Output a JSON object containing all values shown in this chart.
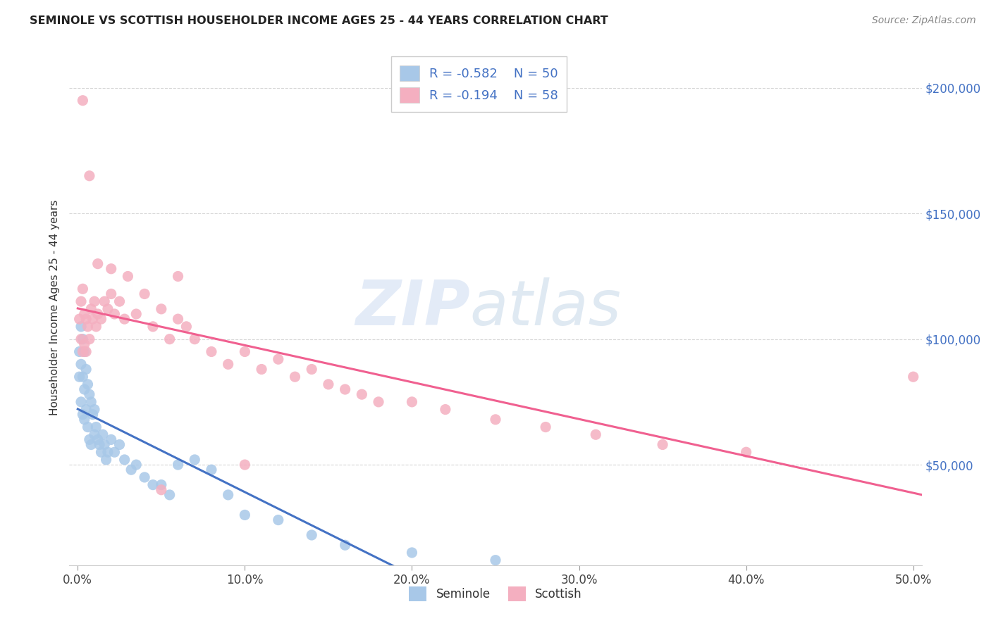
{
  "title": "SEMINOLE VS SCOTTISH HOUSEHOLDER INCOME AGES 25 - 44 YEARS CORRELATION CHART",
  "source": "Source: ZipAtlas.com",
  "ylabel": "Householder Income Ages 25 - 44 years",
  "xlabel_ticks": [
    "0.0%",
    "10.0%",
    "20.0%",
    "30.0%",
    "40.0%",
    "50.0%"
  ],
  "ytick_labels": [
    "$50,000",
    "$100,000",
    "$150,000",
    "$200,000"
  ],
  "ytick_values": [
    50000,
    100000,
    150000,
    200000
  ],
  "xlim": [
    -0.005,
    0.505
  ],
  "ylim": [
    10000,
    215000
  ],
  "background_color": "#ffffff",
  "grid_color": "#cccccc",
  "seminole_color": "#a8c8e8",
  "scottish_color": "#f4afc0",
  "seminole_line_color": "#4472c4",
  "scottish_line_color": "#f06090",
  "seminole_R": -0.582,
  "seminole_N": 50,
  "scottish_R": -0.194,
  "scottish_N": 58,
  "watermark_zip": "ZIP",
  "watermark_atlas": "atlas",
  "seminole_x": [
    0.001,
    0.001,
    0.002,
    0.002,
    0.002,
    0.003,
    0.003,
    0.003,
    0.004,
    0.004,
    0.004,
    0.005,
    0.005,
    0.006,
    0.006,
    0.007,
    0.007,
    0.008,
    0.008,
    0.009,
    0.01,
    0.01,
    0.011,
    0.012,
    0.013,
    0.014,
    0.015,
    0.016,
    0.017,
    0.018,
    0.02,
    0.022,
    0.025,
    0.028,
    0.032,
    0.035,
    0.04,
    0.045,
    0.05,
    0.055,
    0.06,
    0.07,
    0.08,
    0.09,
    0.1,
    0.12,
    0.14,
    0.16,
    0.2,
    0.25
  ],
  "seminole_y": [
    95000,
    85000,
    105000,
    90000,
    75000,
    100000,
    85000,
    70000,
    95000,
    80000,
    68000,
    88000,
    72000,
    82000,
    65000,
    78000,
    60000,
    75000,
    58000,
    70000,
    72000,
    62000,
    65000,
    60000,
    58000,
    55000,
    62000,
    58000,
    52000,
    55000,
    60000,
    55000,
    58000,
    52000,
    48000,
    50000,
    45000,
    42000,
    42000,
    38000,
    50000,
    52000,
    48000,
    38000,
    30000,
    28000,
    22000,
    18000,
    15000,
    12000
  ],
  "scottish_x": [
    0.001,
    0.002,
    0.002,
    0.003,
    0.003,
    0.004,
    0.004,
    0.005,
    0.005,
    0.006,
    0.007,
    0.008,
    0.009,
    0.01,
    0.011,
    0.012,
    0.014,
    0.016,
    0.018,
    0.02,
    0.022,
    0.025,
    0.028,
    0.03,
    0.035,
    0.04,
    0.045,
    0.05,
    0.055,
    0.06,
    0.065,
    0.07,
    0.08,
    0.09,
    0.1,
    0.11,
    0.12,
    0.13,
    0.14,
    0.15,
    0.16,
    0.17,
    0.18,
    0.2,
    0.22,
    0.25,
    0.28,
    0.31,
    0.35,
    0.4,
    0.003,
    0.007,
    0.012,
    0.02,
    0.06,
    0.1,
    0.05,
    0.5
  ],
  "scottish_y": [
    108000,
    115000,
    100000,
    120000,
    95000,
    110000,
    98000,
    108000,
    95000,
    105000,
    100000,
    112000,
    108000,
    115000,
    105000,
    110000,
    108000,
    115000,
    112000,
    118000,
    110000,
    115000,
    108000,
    125000,
    110000,
    118000,
    105000,
    112000,
    100000,
    108000,
    105000,
    100000,
    95000,
    90000,
    95000,
    88000,
    92000,
    85000,
    88000,
    82000,
    80000,
    78000,
    75000,
    75000,
    72000,
    68000,
    65000,
    62000,
    58000,
    55000,
    195000,
    165000,
    130000,
    128000,
    125000,
    50000,
    40000,
    85000
  ]
}
